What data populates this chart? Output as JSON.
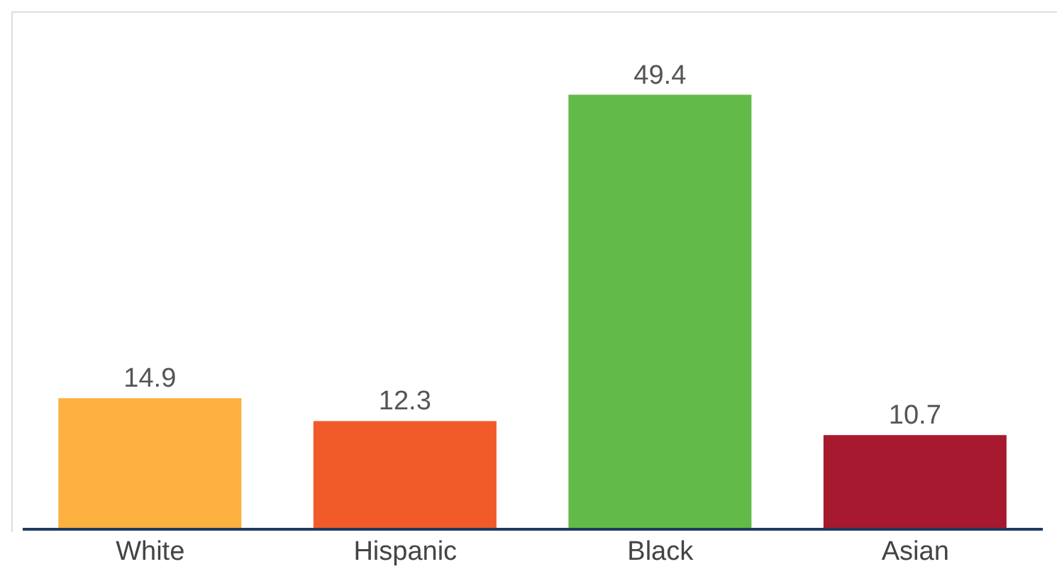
{
  "chart_data": {
    "type": "bar",
    "categories": [
      "White",
      "Hispanic",
      "Black",
      "Asian"
    ],
    "values": [
      14.9,
      12.3,
      49.4,
      10.7
    ],
    "colors": [
      "#fbb040",
      "#f15a29",
      "#62bb46",
      "#a6192e"
    ],
    "data_labels": true
  }
}
